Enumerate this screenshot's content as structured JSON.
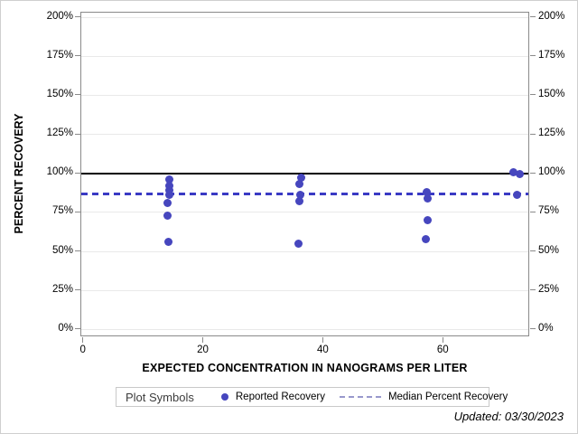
{
  "page": {
    "updated_note": "Updated: 03/30/2023"
  },
  "chart_data": {
    "type": "scatter",
    "title": "",
    "xlabel": "EXPECTED CONCENTRATION IN NANOGRAMS PER LITER",
    "ylabel": "PERCENT RECOVERY",
    "x_domain": [
      -0.4,
      74.4
    ],
    "y_domain": [
      -5,
      203
    ],
    "x_tick_values": [
      0,
      20,
      40,
      60
    ],
    "x_tick_labels": [
      "0",
      "20",
      "40",
      "60"
    ],
    "y_tick_values": [
      0,
      25,
      50,
      75,
      100,
      125,
      150,
      175,
      200
    ],
    "y_tick_labels": [
      "0%",
      "25%",
      "50%",
      "75%",
      "100%",
      "125%",
      "150%",
      "175%",
      "200%"
    ],
    "grid": "horizontal-only",
    "y_labels_both_sides": true,
    "reference_line": {
      "y": 100,
      "color": "#000000"
    },
    "median_line": {
      "y": 87,
      "color": "#3a3ac4",
      "style": "dashed"
    },
    "colors": {
      "marker": "#4646be",
      "median": "#3a3ac4",
      "reference": "#000000",
      "grid": "#e9e9e9",
      "frame": "#8a8a8a",
      "legend_dash": "#9898cc"
    },
    "series": [
      {
        "name": "Reported Recovery",
        "type": "scatter",
        "color": "#4646be",
        "points": [
          {
            "x": 14.3,
            "y": 96
          },
          {
            "x": 14.2,
            "y": 92
          },
          {
            "x": 14.3,
            "y": 89
          },
          {
            "x": 14.2,
            "y": 86
          },
          {
            "x": 14.0,
            "y": 81
          },
          {
            "x": 13.9,
            "y": 73
          },
          {
            "x": 14.1,
            "y": 56
          },
          {
            "x": 36.2,
            "y": 97
          },
          {
            "x": 36.0,
            "y": 93
          },
          {
            "x": 36.1,
            "y": 86
          },
          {
            "x": 36.0,
            "y": 82
          },
          {
            "x": 35.8,
            "y": 55
          },
          {
            "x": 57.2,
            "y": 88
          },
          {
            "x": 57.3,
            "y": 84
          },
          {
            "x": 57.3,
            "y": 70
          },
          {
            "x": 57.0,
            "y": 58
          },
          {
            "x": 71.6,
            "y": 100.5
          },
          {
            "x": 72.7,
            "y": 99.5
          },
          {
            "x": 72.2,
            "y": 86
          }
        ]
      },
      {
        "name": "Median Percent Recovery",
        "type": "horizontal-line",
        "style": "dashed",
        "color": "#3a3ac4",
        "y": 87
      }
    ],
    "legend": {
      "title": "Plot Symbols",
      "position": "bottom",
      "entries": [
        {
          "label": "Reported Recovery",
          "marker": "dot",
          "color": "#4646be"
        },
        {
          "label": "Median Percent Recovery",
          "marker": "dashed-line",
          "color": "#9898cc"
        }
      ]
    }
  }
}
